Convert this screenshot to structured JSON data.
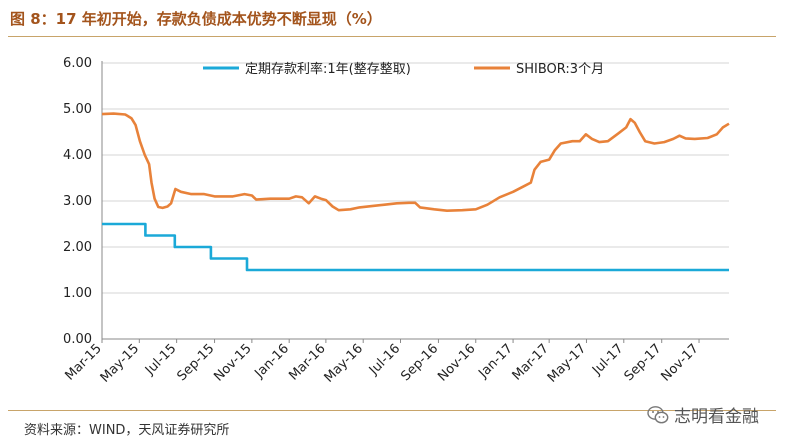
{
  "title": "图 8：17 年初开始，存款负债成本优势不断显现（%）",
  "source": "资料来源：WIND，天风证券研究所",
  "watermark": "志明看金融",
  "watermark_icon": "wechat-icon",
  "chart_data": {
    "type": "line",
    "x_ticks": [
      "Mar-15",
      "May-15",
      "Jul-15",
      "Sep-15",
      "Nov-15",
      "Jan-16",
      "Mar-16",
      "May-16",
      "Jul-16",
      "Sep-16",
      "Nov-16",
      "Jan-17",
      "Mar-17",
      "May-17",
      "Jul-17",
      "Sep-17",
      "Nov-17"
    ],
    "y_ticks": [
      "0.00",
      "1.00",
      "2.00",
      "3.00",
      "4.00",
      "5.00",
      "6.00"
    ],
    "ylim": [
      0,
      6
    ],
    "x_range": [
      "2015-03-01",
      "2017-12-20"
    ],
    "grid": true,
    "legend_position": "top",
    "series": [
      {
        "name": "定期存款利率:1年(整存整取)",
        "color": "#1ba9d8",
        "step": true,
        "points": [
          [
            "2015-03-01",
            2.5
          ],
          [
            "2015-05-11",
            2.25
          ],
          [
            "2015-06-28",
            2.0
          ],
          [
            "2015-08-26",
            1.75
          ],
          [
            "2015-10-24",
            1.5
          ],
          [
            "2017-12-20",
            1.5
          ]
        ]
      },
      {
        "name": "SHIBOR:3个月",
        "color": "#e8823a",
        "step": false,
        "points": [
          [
            "2015-03-01",
            4.89
          ],
          [
            "2015-03-20",
            4.9
          ],
          [
            "2015-04-08",
            4.88
          ],
          [
            "2015-04-18",
            4.8
          ],
          [
            "2015-04-25",
            4.65
          ],
          [
            "2015-05-02",
            4.3
          ],
          [
            "2015-05-10",
            4.0
          ],
          [
            "2015-05-17",
            3.8
          ],
          [
            "2015-05-21",
            3.4
          ],
          [
            "2015-05-26",
            3.05
          ],
          [
            "2015-06-01",
            2.87
          ],
          [
            "2015-06-08",
            2.85
          ],
          [
            "2015-06-16",
            2.88
          ],
          [
            "2015-06-22",
            2.95
          ],
          [
            "2015-06-29",
            3.26
          ],
          [
            "2015-07-08",
            3.2
          ],
          [
            "2015-07-25",
            3.15
          ],
          [
            "2015-08-15",
            3.15
          ],
          [
            "2015-09-01",
            3.1
          ],
          [
            "2015-10-01",
            3.1
          ],
          [
            "2015-10-20",
            3.15
          ],
          [
            "2015-11-01",
            3.12
          ],
          [
            "2015-11-08",
            3.03
          ],
          [
            "2015-12-01",
            3.05
          ],
          [
            "2016-01-01",
            3.05
          ],
          [
            "2016-01-12",
            3.1
          ],
          [
            "2016-01-22",
            3.08
          ],
          [
            "2016-02-02",
            2.95
          ],
          [
            "2016-02-12",
            3.1
          ],
          [
            "2016-02-22",
            3.05
          ],
          [
            "2016-03-01",
            3.02
          ],
          [
            "2016-03-12",
            2.88
          ],
          [
            "2016-03-22",
            2.8
          ],
          [
            "2016-04-10",
            2.82
          ],
          [
            "2016-04-25",
            2.86
          ],
          [
            "2016-05-15",
            2.89
          ],
          [
            "2016-06-05",
            2.92
          ],
          [
            "2016-06-25",
            2.95
          ],
          [
            "2016-07-15",
            2.96
          ],
          [
            "2016-07-25",
            2.96
          ],
          [
            "2016-08-02",
            2.86
          ],
          [
            "2016-08-25",
            2.82
          ],
          [
            "2016-09-15",
            2.79
          ],
          [
            "2016-10-10",
            2.8
          ],
          [
            "2016-11-01",
            2.82
          ],
          [
            "2016-11-20",
            2.92
          ],
          [
            "2016-12-10",
            3.08
          ],
          [
            "2017-01-01",
            3.2
          ],
          [
            "2017-01-20",
            3.33
          ],
          [
            "2017-01-30",
            3.4
          ],
          [
            "2017-02-05",
            3.68
          ],
          [
            "2017-02-15",
            3.85
          ],
          [
            "2017-03-01",
            3.9
          ],
          [
            "2017-03-10",
            4.1
          ],
          [
            "2017-03-20",
            4.25
          ],
          [
            "2017-04-08",
            4.3
          ],
          [
            "2017-04-20",
            4.3
          ],
          [
            "2017-04-30",
            4.45
          ],
          [
            "2017-05-10",
            4.35
          ],
          [
            "2017-05-22",
            4.28
          ],
          [
            "2017-06-05",
            4.3
          ],
          [
            "2017-06-22",
            4.47
          ],
          [
            "2017-07-05",
            4.6
          ],
          [
            "2017-07-12",
            4.78
          ],
          [
            "2017-07-19",
            4.7
          ],
          [
            "2017-07-27",
            4.5
          ],
          [
            "2017-08-05",
            4.3
          ],
          [
            "2017-08-20",
            4.25
          ],
          [
            "2017-09-05",
            4.28
          ],
          [
            "2017-09-20",
            4.35
          ],
          [
            "2017-09-30",
            4.42
          ],
          [
            "2017-10-10",
            4.36
          ],
          [
            "2017-10-25",
            4.35
          ],
          [
            "2017-11-15",
            4.37
          ],
          [
            "2017-11-30",
            4.45
          ],
          [
            "2017-12-10",
            4.6
          ],
          [
            "2017-12-20",
            4.68
          ]
        ]
      }
    ]
  }
}
